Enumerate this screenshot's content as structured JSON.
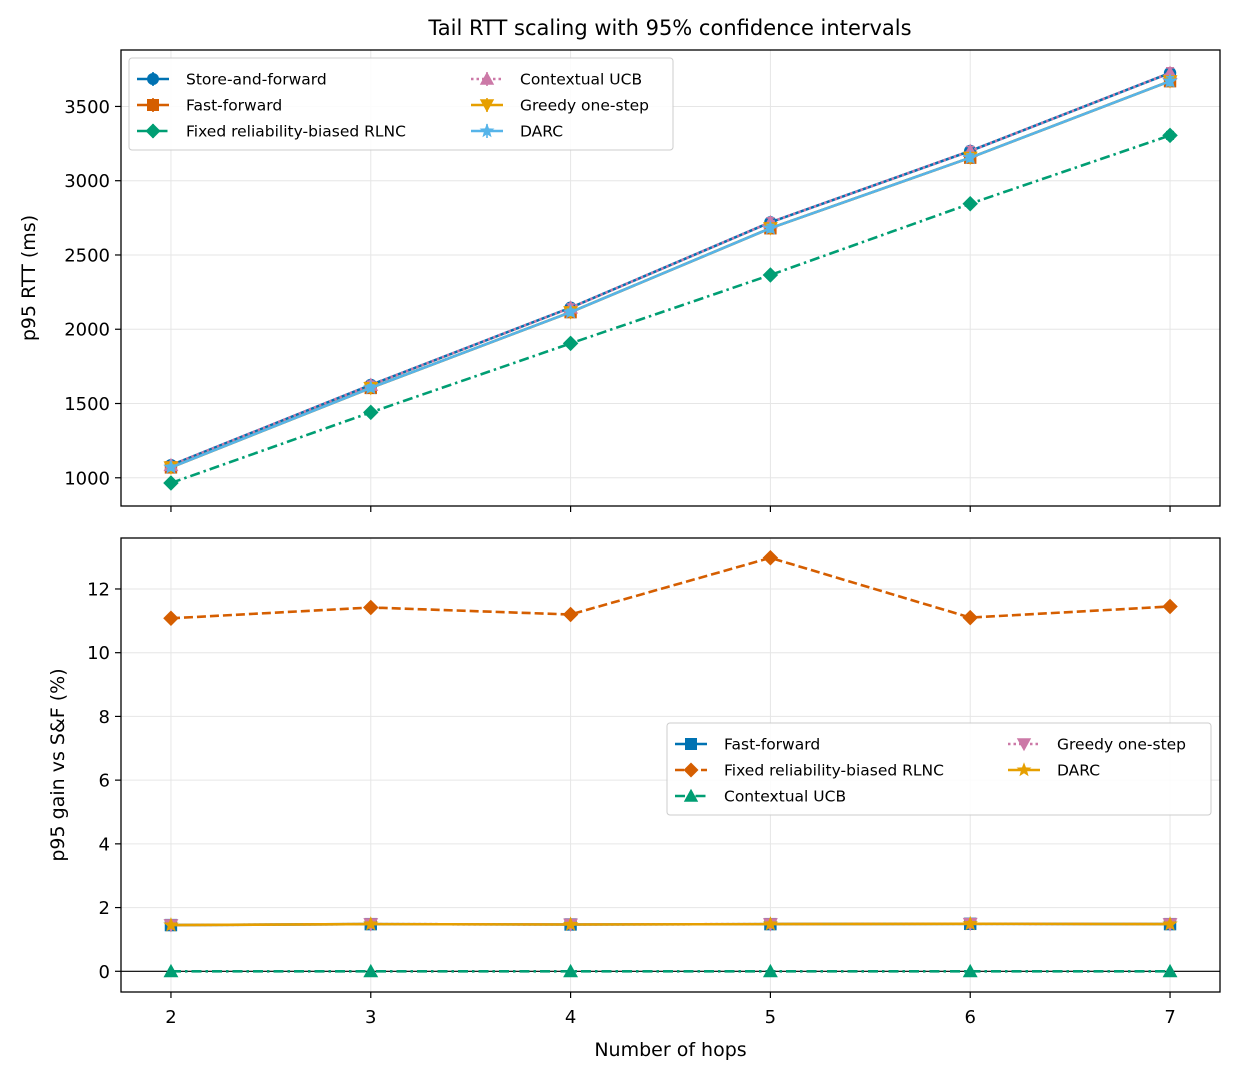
{
  "chart_data": [
    {
      "type": "line",
      "title": "Tail RTT scaling with 95% confidence intervals",
      "xlabel": "",
      "ylabel": "p95 RTT (ms)",
      "x": [
        2,
        3,
        4,
        5,
        6,
        7
      ],
      "xlim": [
        1.75,
        7.25
      ],
      "ylim": [
        810,
        3880
      ],
      "yticks": [
        1000,
        1500,
        2000,
        2500,
        3000,
        3500
      ],
      "grid": true,
      "legend": {
        "placement": "upper left",
        "columns": 2
      },
      "series": [
        {
          "name": "Store-and-forward",
          "values": [
            1085,
            1625,
            2145,
            2720,
            3200,
            3725
          ],
          "ci": [
            15,
            20,
            20,
            25,
            25,
            30
          ],
          "color": "#0072b2",
          "linestyle": "solid",
          "marker": "circle"
        },
        {
          "name": "Fast-forward",
          "values": [
            1070,
            1605,
            2115,
            2680,
            3155,
            3670
          ],
          "ci": [
            15,
            20,
            20,
            25,
            25,
            30
          ],
          "color": "#d55e00",
          "linestyle": "solid",
          "marker": "square"
        },
        {
          "name": "Fixed reliability-biased RLNC",
          "values": [
            965,
            1440,
            1905,
            2365,
            2845,
            3305
          ],
          "ci": [
            10,
            15,
            15,
            20,
            20,
            25
          ],
          "color": "#009e73",
          "linestyle": "dashdot",
          "marker": "diamond"
        },
        {
          "name": "Contextual UCB",
          "values": [
            1085,
            1625,
            2145,
            2720,
            3200,
            3725
          ],
          "ci": [
            20,
            25,
            25,
            30,
            30,
            35
          ],
          "color": "#cc79a7",
          "linestyle": "dotted",
          "marker": "triangle-up"
        },
        {
          "name": "Greedy one-step",
          "values": [
            1070,
            1605,
            2115,
            2680,
            3155,
            3670
          ],
          "ci": [
            15,
            20,
            20,
            25,
            25,
            30
          ],
          "color": "#e69f00",
          "linestyle": "solid",
          "marker": "triangle-down"
        },
        {
          "name": "DARC",
          "values": [
            1070,
            1605,
            2115,
            2680,
            3155,
            3670
          ],
          "ci": [
            15,
            20,
            20,
            25,
            25,
            30
          ],
          "color": "#56b4e9",
          "linestyle": "solid",
          "marker": "star"
        }
      ]
    },
    {
      "type": "line",
      "title": "",
      "xlabel": "Number of hops",
      "ylabel": "p95 gain vs S&F (%)",
      "x": [
        2,
        3,
        4,
        5,
        6,
        7
      ],
      "xlim": [
        1.75,
        7.25
      ],
      "ylim": [
        -0.65,
        13.6
      ],
      "yticks": [
        0,
        2,
        4,
        6,
        8,
        10,
        12
      ],
      "grid": true,
      "reference_line": 0,
      "legend": {
        "placement": "center right",
        "columns": 2
      },
      "series": [
        {
          "name": "Fast-forward",
          "values": [
            1.45,
            1.48,
            1.47,
            1.48,
            1.49,
            1.48
          ],
          "color": "#0072b2",
          "linestyle": "solid",
          "marker": "square"
        },
        {
          "name": "Fixed reliability-biased RLNC",
          "values": [
            11.08,
            11.42,
            11.2,
            12.98,
            11.1,
            11.45
          ],
          "color": "#d55e00",
          "linestyle": "dashed",
          "marker": "diamond"
        },
        {
          "name": "Contextual UCB",
          "values": [
            0.0,
            0.0,
            0.0,
            0.0,
            0.0,
            0.0
          ],
          "color": "#009e73",
          "linestyle": "dashdot",
          "marker": "triangle-up"
        },
        {
          "name": "Greedy one-step",
          "values": [
            1.45,
            1.48,
            1.47,
            1.48,
            1.49,
            1.48
          ],
          "color": "#cc79a7",
          "linestyle": "dotted",
          "marker": "triangle-down"
        },
        {
          "name": "DARC",
          "values": [
            1.45,
            1.48,
            1.47,
            1.48,
            1.49,
            1.48
          ],
          "color": "#e69f00",
          "linestyle": "solid",
          "marker": "star"
        }
      ]
    }
  ]
}
